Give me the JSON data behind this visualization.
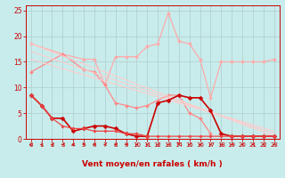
{
  "background_color": "#c8ecec",
  "grid_color": "#b0cccc",
  "xlabel": "Vent moyen/en rafales ( km/h )",
  "xlabel_color": "#cc0000",
  "xlabel_fontsize": 6.5,
  "tick_color": "#cc0000",
  "xlim": [
    -0.5,
    23.5
  ],
  "ylim": [
    0,
    26
  ],
  "yticks": [
    0,
    5,
    10,
    15,
    20,
    25
  ],
  "xticks": [
    0,
    1,
    2,
    3,
    4,
    5,
    6,
    7,
    8,
    9,
    10,
    11,
    12,
    13,
    14,
    15,
    16,
    17,
    18,
    19,
    20,
    21,
    22,
    23
  ],
  "lines": [
    {
      "x": [
        0,
        3,
        5,
        6,
        7,
        8,
        9,
        10,
        11,
        12,
        13,
        14,
        15,
        16,
        17,
        18,
        19,
        20,
        21,
        22,
        23
      ],
      "y": [
        18.5,
        16.5,
        15.5,
        15.5,
        10.5,
        16,
        16,
        16,
        18,
        18.5,
        24.5,
        19,
        18.5,
        15.5,
        8,
        15,
        15,
        15,
        15,
        15,
        15.5
      ],
      "color": "#ffaaaa",
      "marker": "D",
      "markersize": 2.0,
      "linewidth": 0.9
    },
    {
      "x": [
        0,
        3,
        5,
        6,
        7,
        8,
        9,
        10,
        11,
        12,
        13,
        14,
        15,
        16,
        17
      ],
      "y": [
        13,
        16.5,
        13.5,
        13,
        10.5,
        7,
        6.5,
        6,
        6.5,
        7.5,
        8.5,
        8.5,
        5,
        4,
        1
      ],
      "color": "#ff8888",
      "marker": "D",
      "markersize": 2.0,
      "linewidth": 0.9
    },
    {
      "x": [
        0,
        23
      ],
      "y": [
        18.5,
        0.5
      ],
      "color": "#ffcccc",
      "marker": null,
      "linewidth": 0.8
    },
    {
      "x": [
        0,
        23
      ],
      "y": [
        17,
        1.0
      ],
      "color": "#ffcccc",
      "marker": null,
      "linewidth": 0.8
    },
    {
      "x": [
        0,
        23
      ],
      "y": [
        15.5,
        1.5
      ],
      "color": "#ffcccc",
      "marker": null,
      "linewidth": 0.8
    },
    {
      "x": [
        0,
        1,
        2,
        3,
        4,
        5,
        6,
        7,
        8,
        9,
        10,
        11,
        12,
        13,
        14,
        15,
        16,
        17,
        18,
        19,
        20,
        21,
        22,
        23
      ],
      "y": [
        8.5,
        6.5,
        4.0,
        4.0,
        1.5,
        2.0,
        2.5,
        2.5,
        2.0,
        1.0,
        0.5,
        0.5,
        7.0,
        7.5,
        8.5,
        8.0,
        8.0,
        5.5,
        1.0,
        0.5,
        0.5,
        0.5,
        0.5,
        0.5
      ],
      "color": "#cc0000",
      "marker": "D",
      "markersize": 2.5,
      "linewidth": 1.2
    },
    {
      "x": [
        0,
        1,
        2,
        3,
        4,
        5,
        6,
        7,
        8,
        9,
        10,
        11,
        12,
        13,
        14,
        15,
        16,
        17,
        18,
        19,
        20,
        21,
        22,
        23
      ],
      "y": [
        8.5,
        6.5,
        4.0,
        2.5,
        2.0,
        2.0,
        1.5,
        1.5,
        1.5,
        1.0,
        1.0,
        0.5,
        0.5,
        0.5,
        0.5,
        0.5,
        0.5,
        0.5,
        0.5,
        0.5,
        0.5,
        0.5,
        0.5,
        0.5
      ],
      "color": "#ee4444",
      "marker": "D",
      "markersize": 1.8,
      "linewidth": 0.9
    }
  ],
  "arrow_color": "#cc0000",
  "arrow_angles": [
    210,
    225,
    225,
    225,
    225,
    225,
    225,
    225,
    225,
    225,
    225,
    225,
    225,
    225,
    270,
    225,
    225,
    225,
    225,
    225,
    225,
    225,
    225,
    225
  ]
}
